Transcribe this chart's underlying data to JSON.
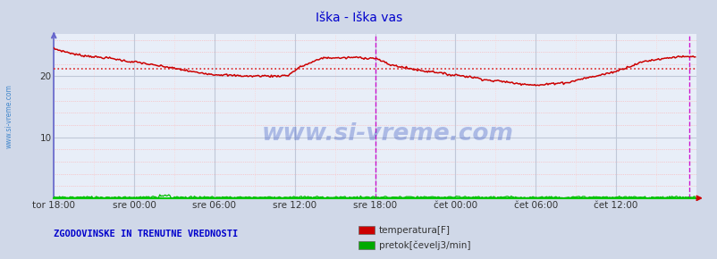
{
  "title": "Iška - Iška vas",
  "title_color": "#0000cc",
  "bg_color": "#d0d8e8",
  "plot_bg_color": "#e8eef8",
  "grid_major_color": "#c0c8d8",
  "grid_minor_color_h": "#ffaaaa",
  "grid_minor_color_v": "#ffcccc",
  "xlim": [
    0,
    576
  ],
  "ylim": [
    0,
    27.0
  ],
  "yticks": [
    10,
    20
  ],
  "xtick_labels": [
    "tor 18:00",
    "sre 00:00",
    "sre 06:00",
    "sre 12:00",
    "sre 18:00",
    "čet 00:00",
    "čet 06:00",
    "čet 12:00"
  ],
  "xtick_positions": [
    0,
    72,
    144,
    216,
    288,
    360,
    432,
    504
  ],
  "avg_line_value": 21.2,
  "watermark": "www.si-vreme.com",
  "watermark_color": "#2244bb",
  "left_text": "www.si-vreme.com",
  "left_text_color": "#4488cc",
  "bottom_text": "ZGODOVINSKE IN TRENUTNE VREDNOSTI",
  "bottom_text_color": "#0000cc",
  "legend_items": [
    {
      "label": "temperatura[F]",
      "color": "#cc0000"
    },
    {
      "label": "pretok[čevelj3/min]",
      "color": "#00aa00"
    }
  ],
  "temp_color": "#cc0000",
  "flow_color": "#00bb00",
  "avg_color": "#dd2222",
  "spine_left_color": "#6666cc",
  "spine_bottom_color": "#00cc00",
  "vline_color": "#cc00cc",
  "vline_x": 288,
  "x_arrow_color": "#cc0000",
  "y_arrow_color": "#6666cc"
}
